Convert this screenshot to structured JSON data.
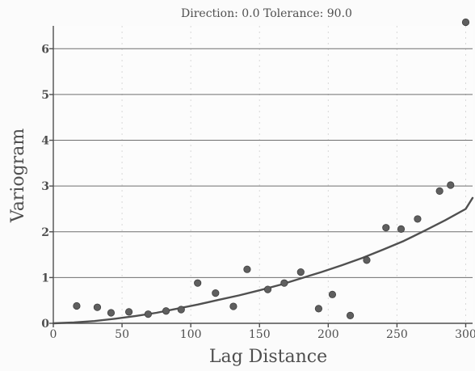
{
  "chart_data": {
    "type": "scatter",
    "title": "Direction: 0.0 Tolerance: 90.0",
    "xlabel": "Lag Distance",
    "ylabel": "Variogram",
    "xlim": [
      0,
      305
    ],
    "ylim": [
      0,
      6.5
    ],
    "x_ticks": [
      0,
      50,
      100,
      150,
      200,
      250,
      300
    ],
    "y_ticks": [
      0,
      1,
      2,
      3,
      4,
      5,
      6
    ],
    "grid": "horizontal",
    "series": [
      {
        "values": [
          [
            17,
            0.38
          ],
          [
            32,
            0.35
          ],
          [
            42,
            0.23
          ],
          [
            55,
            0.25
          ],
          [
            69,
            0.2
          ],
          [
            82,
            0.27
          ],
          [
            93,
            0.3
          ],
          [
            105,
            0.88
          ],
          [
            118,
            0.66
          ],
          [
            131,
            0.37
          ],
          [
            141,
            1.18
          ],
          [
            156,
            0.74
          ],
          [
            168,
            0.88
          ],
          [
            180,
            1.12
          ],
          [
            193,
            0.32
          ],
          [
            203,
            0.63
          ],
          [
            216,
            0.17
          ],
          [
            228,
            1.38
          ],
          [
            242,
            2.09
          ],
          [
            253,
            2.06
          ],
          [
            265,
            2.28
          ],
          [
            281,
            2.89
          ],
          [
            289,
            3.02
          ],
          [
            300,
            6.58
          ]
        ]
      },
      {
        "type": "line",
        "x": [
          0,
          15,
          30,
          45,
          60,
          75,
          90,
          105,
          120,
          135,
          150,
          165,
          180,
          195,
          210,
          225,
          240,
          255,
          270,
          285,
          300,
          305
        ],
        "values": [
          0,
          0.02,
          0.05,
          0.1,
          0.16,
          0.23,
          0.32,
          0.41,
          0.51,
          0.61,
          0.72,
          0.84,
          0.98,
          1.12,
          1.27,
          1.43,
          1.61,
          1.8,
          2.02,
          2.25,
          2.5,
          2.74
        ]
      }
    ]
  }
}
